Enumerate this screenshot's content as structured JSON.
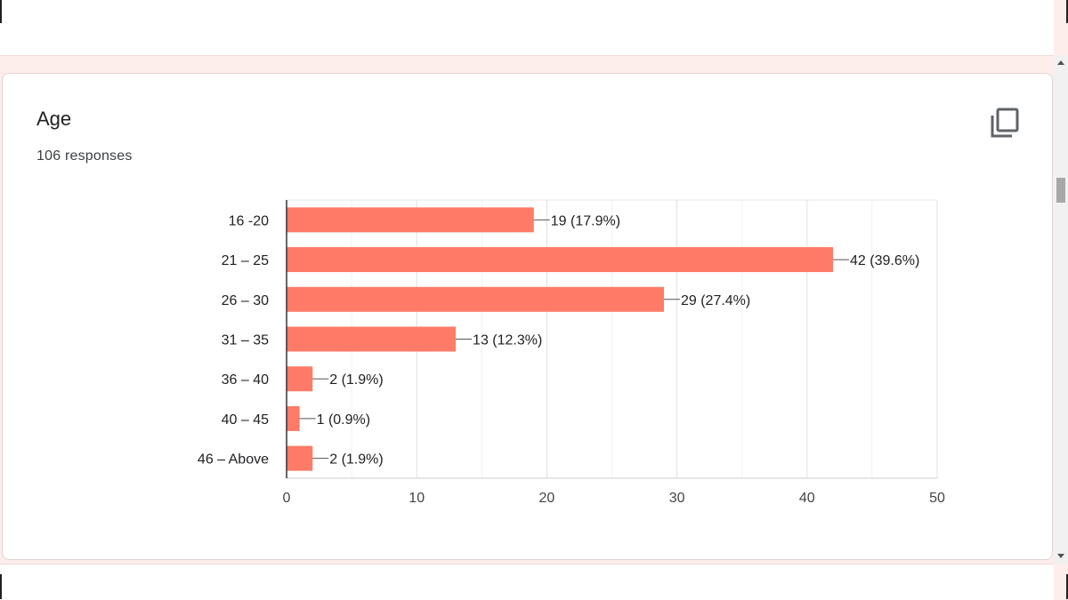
{
  "card": {
    "title": "Age",
    "responses": "106 responses"
  },
  "icons": {
    "copy": "copy-icon"
  },
  "colors": {
    "bar": "#ff7b67",
    "grid": "#e8e8e8",
    "axis": "#333333",
    "text": "#202124"
  },
  "chart_data": {
    "type": "bar",
    "orientation": "horizontal",
    "categories": [
      "16 -20",
      "21 – 25",
      "26 – 30",
      "31 – 35",
      "36 – 40",
      "40 – 45",
      "46 – Above"
    ],
    "values": [
      19,
      42,
      29,
      13,
      2,
      1,
      2
    ],
    "data_labels": [
      "19 (17.9%)",
      "42 (39.6%)",
      "29 (27.4%)",
      "13 (12.3%)",
      "2 (1.9%)",
      "1 (0.9%)",
      "2 (1.9%)"
    ],
    "xlim": [
      0,
      50
    ],
    "xticks": [
      0,
      10,
      20,
      30,
      40,
      50
    ],
    "grid": true,
    "title": "",
    "xlabel": "",
    "ylabel": ""
  }
}
